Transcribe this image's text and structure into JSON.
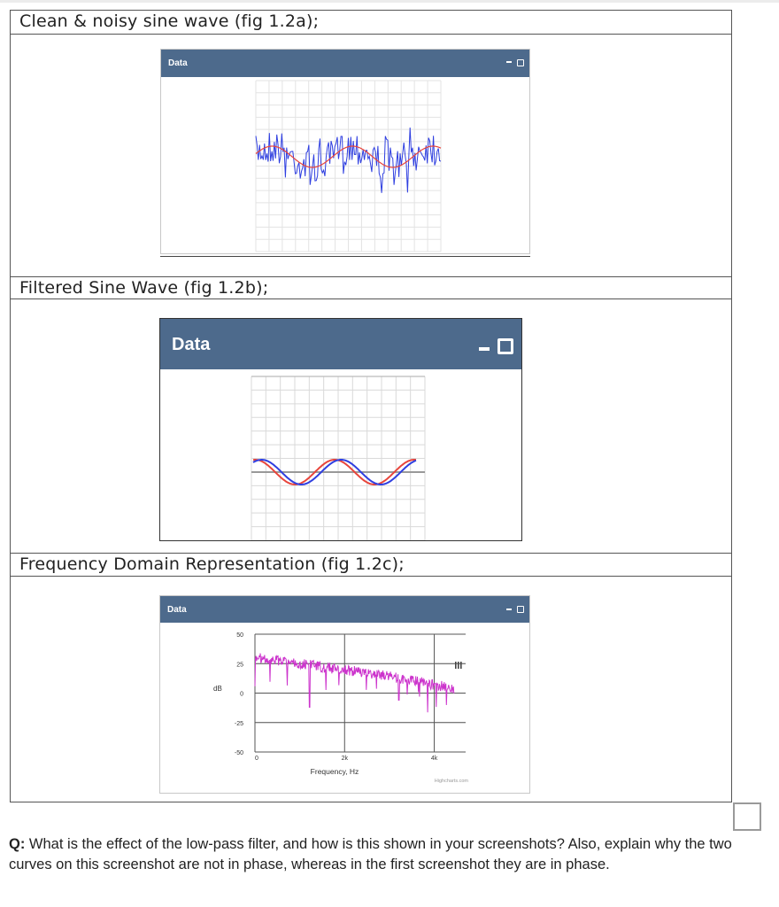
{
  "fig_a": {
    "caption": "Clean & noisy sine wave (fig 1.2a);",
    "panel_title": "Data",
    "controls": {
      "minimize": "minimize",
      "maximize": "maximize"
    }
  },
  "fig_b": {
    "caption": "Filtered  Sine Wave (fig 1.2b);",
    "panel_title": "Data"
  },
  "fig_c": {
    "caption": "Frequency Domain Representation (fig 1.2c);",
    "panel_title": "Data",
    "chart": {
      "ylabel": "dB",
      "xlabel": "Frequency, Hz",
      "yticks": [
        "50",
        "25",
        "0",
        "-25",
        "-50"
      ],
      "xticks": [
        "0",
        "2k",
        "4k"
      ],
      "credit": "Highcharts.com"
    }
  },
  "question": {
    "prefix": "Q:",
    "text": " What is the effect of the low-pass filter, and how is this shown in your screenshots? Also, explain why the two curves on this screenshot are not in phase, whereas in the first screenshot they are in phase."
  },
  "colors": {
    "header": "#4d6a8c",
    "clean_wave": "#e8453c",
    "noisy_wave": "#2f3fe0",
    "spectrum": "#cc33cc"
  },
  "chart_data": [
    {
      "type": "line",
      "series": [
        {
          "color": "#e8453c",
          "values": "clean sine (~2.3 cycles)"
        },
        {
          "color": "#2f3fe0",
          "values": "noisy sine (same phase)"
        }
      ]
    },
    {
      "type": "line",
      "series": [
        {
          "color": "#e8453c",
          "values": "original sine"
        },
        {
          "color": "#2f3fe0",
          "values": "filtered sine (phase shifted)"
        }
      ]
    },
    {
      "type": "line",
      "xlabel": "Frequency, Hz",
      "ylabel": "dB",
      "ylim": [
        -50,
        50
      ],
      "xticks": [
        "0",
        "2k",
        "4k"
      ],
      "series": [
        {
          "color": "#cc33cc",
          "values": "spectrum ~ 30 dB at 0 Hz falling to ~ 5 dB near 4.5k"
        }
      ]
    }
  ]
}
